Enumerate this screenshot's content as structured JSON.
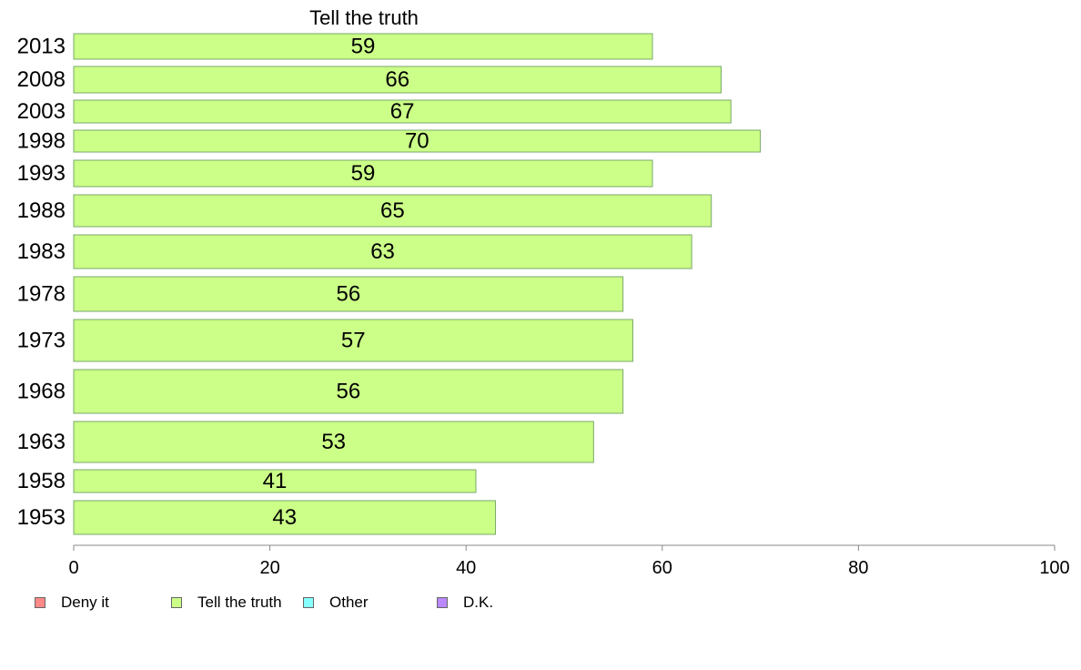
{
  "chart_data": {
    "type": "bar",
    "orientation": "horizontal",
    "title": "Tell the truth",
    "categories": [
      "2013",
      "2008",
      "2003",
      "1998",
      "1993",
      "1988",
      "1983",
      "1978",
      "1973",
      "1968",
      "1963",
      "1958",
      "1953"
    ],
    "series": [
      {
        "name": "Tell the truth",
        "values": [
          59,
          66,
          67,
          70,
          59,
          65,
          63,
          56,
          57,
          56,
          53,
          41,
          43
        ]
      }
    ],
    "data_labels": [
      "59",
      "66",
      "67",
      "70",
      "59",
      "65",
      "63",
      "56",
      "57",
      "56",
      "53",
      "41",
      "43"
    ],
    "xlim": [
      0,
      100
    ],
    "xticks": [
      0,
      20,
      40,
      60,
      80,
      100
    ],
    "grid": false,
    "legend_position": "bottom-left",
    "legend": [
      {
        "label": "Deny it",
        "color": "#ff8888"
      },
      {
        "label": "Tell the truth",
        "color": "#ccff88"
      },
      {
        "label": "Other",
        "color": "#88ffff"
      },
      {
        "label": "D.K.",
        "color": "#bb88ff"
      }
    ],
    "bar_color": "#ccff88"
  }
}
